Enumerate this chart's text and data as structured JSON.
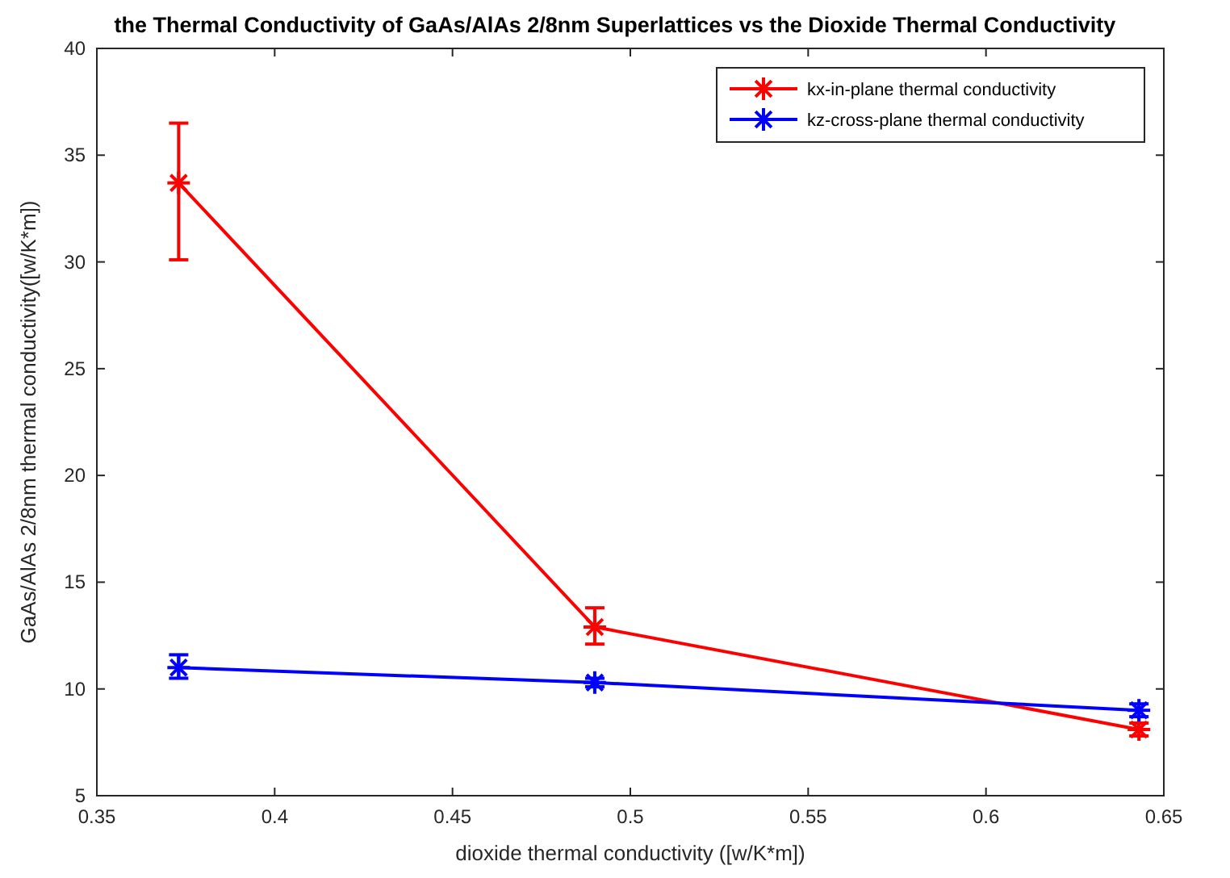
{
  "chart_data": {
    "type": "line",
    "title": "the Thermal Conductivity of GaAs/AlAs 2/8nm Superlattices vs the Dioxide Thermal Conductivity",
    "xlabel": "dioxide thermal conductivity ([w/K*m])",
    "ylabel": "GaAs/AlAs 2/8nm thermal conductivity([w/K*m])",
    "x": [
      0.373,
      0.49,
      0.643
    ],
    "series": [
      {
        "name": "kx-in-plane thermal conductivity",
        "color": "#ff0000",
        "values": [
          33.7,
          12.9,
          8.1
        ],
        "errors": [
          [
            30.1,
            36.5
          ],
          [
            12.1,
            13.8
          ],
          [
            7.8,
            8.4
          ]
        ]
      },
      {
        "name": "kz-cross-plane thermal conductivity",
        "color": "#0000ff",
        "values": [
          11.0,
          10.3,
          9.0
        ],
        "errors": [
          [
            10.5,
            11.6
          ],
          [
            10.1,
            10.5
          ],
          [
            8.7,
            9.3
          ]
        ]
      }
    ],
    "xlim": [
      0.35,
      0.65
    ],
    "xticks": [
      0.35,
      0.4,
      0.45,
      0.5,
      0.55,
      0.6,
      0.65
    ],
    "ylim": [
      5,
      40
    ],
    "yticks": [
      5,
      10,
      15,
      20,
      25,
      30,
      35,
      40
    ],
    "legend": "top right",
    "marker": "cross",
    "line_style": "solid",
    "grid": false
  }
}
